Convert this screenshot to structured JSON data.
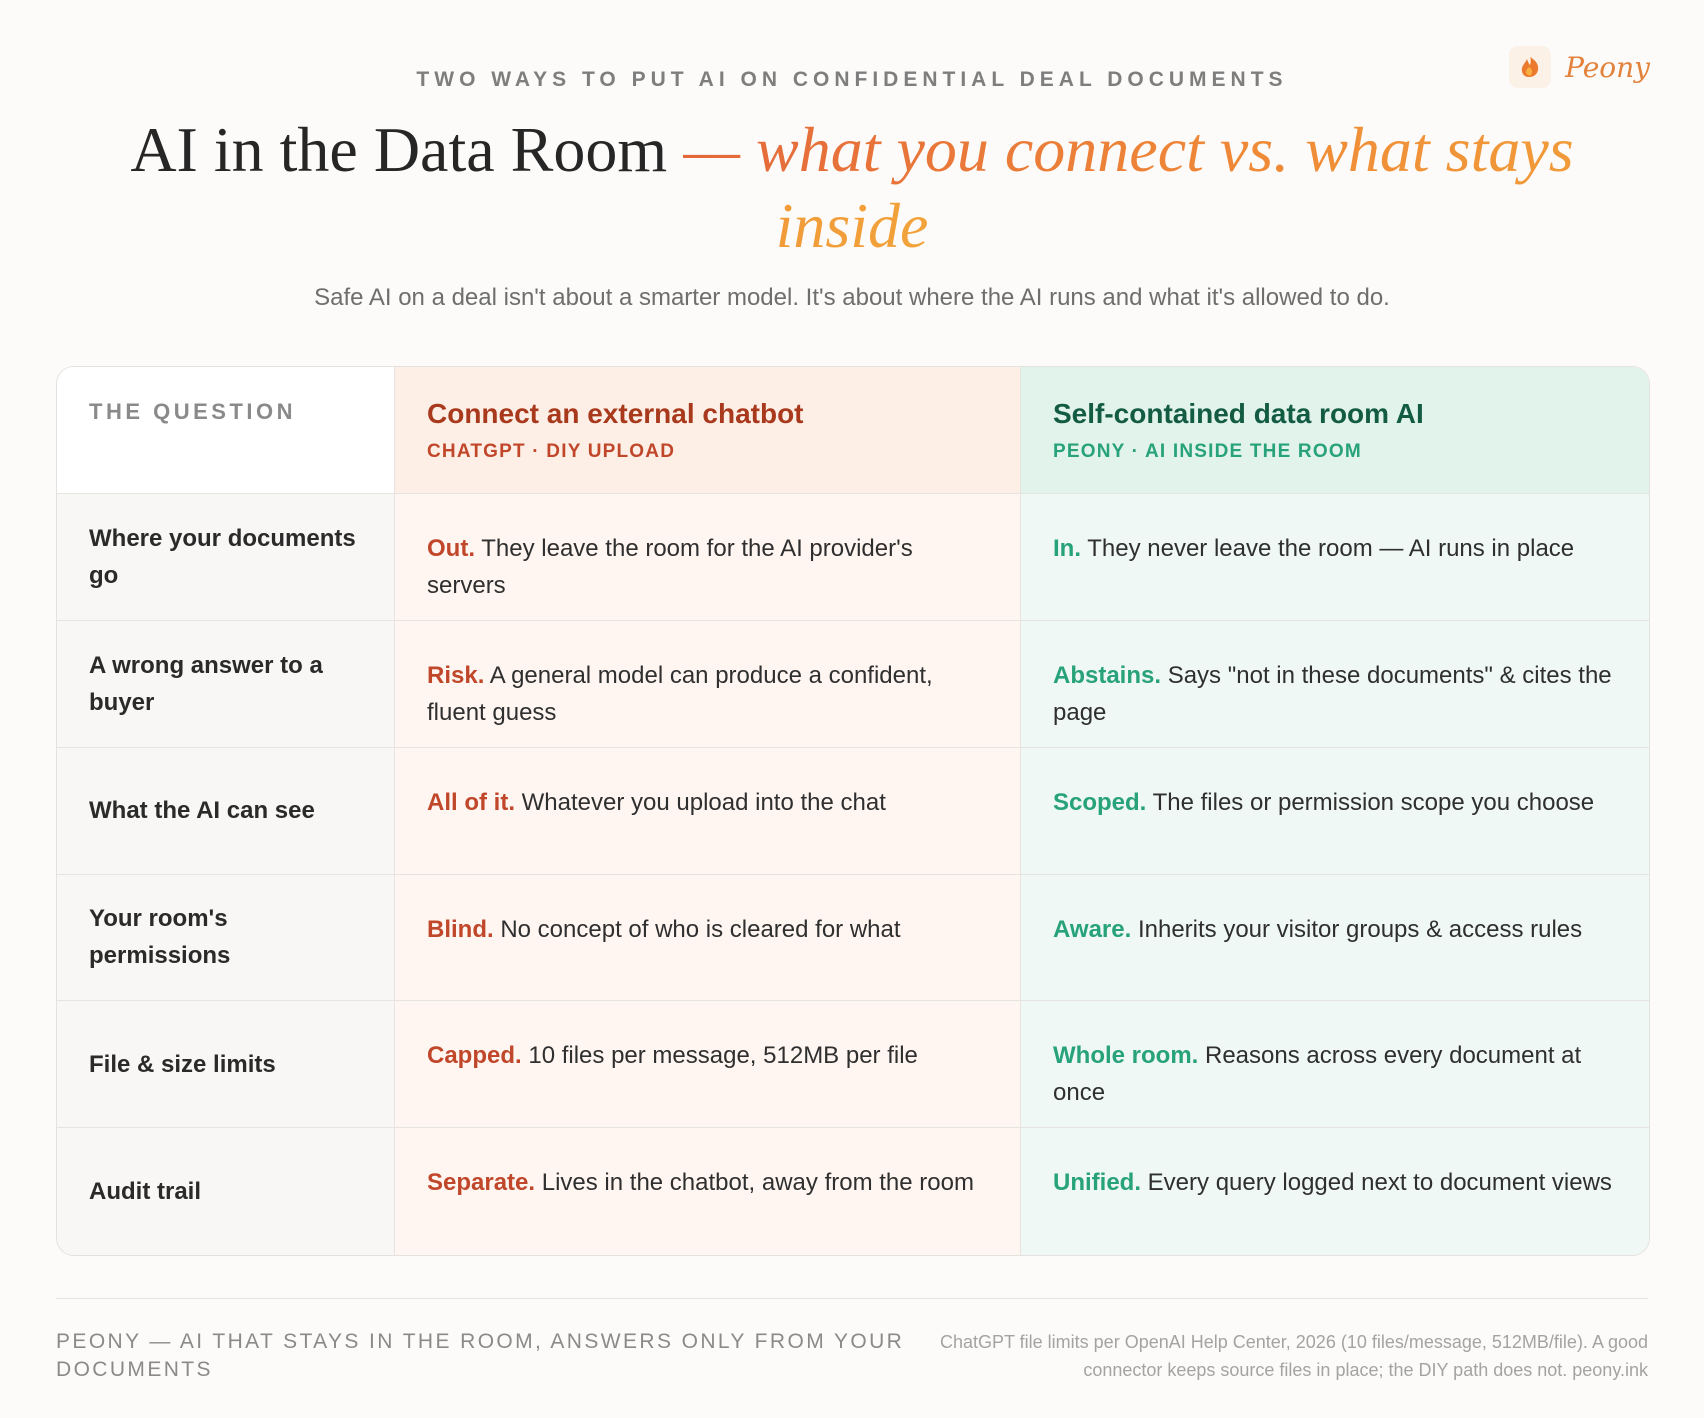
{
  "brand": {
    "name": "Peony",
    "icon": "peony-flame-icon"
  },
  "kicker": "TWO WAYS TO PUT AI ON CONFIDENTIAL DEAL DOCUMENTS",
  "headline": {
    "main": "AI in the Data Room",
    "accent": "— what you connect vs. what stays inside"
  },
  "subtitle": "Safe AI on a deal isn't about a smarter model. It's about where the AI runs and what it's allowed to do.",
  "colors": {
    "external_accent": "#c0472a",
    "external_bg": "#fff6f2",
    "internal_accent": "#27a27a",
    "internal_bg": "#eff8f4",
    "headline_accent": "#ef8a38"
  },
  "table": {
    "question_header": "THE QUESTION",
    "external": {
      "title": "Connect an external chatbot",
      "subtitle": "CHATGPT · DIY UPLOAD"
    },
    "internal": {
      "title": "Self-contained data room AI",
      "subtitle": "PEONY · AI INSIDE THE ROOM"
    },
    "rows": [
      {
        "question": "Where your documents go",
        "external": {
          "lead": "Out.",
          "text": "They leave the room for the AI provider's servers"
        },
        "internal": {
          "lead": "In.",
          "text": "They never leave the room — AI runs in place"
        }
      },
      {
        "question": "A wrong answer to a buyer",
        "external": {
          "lead": "Risk.",
          "text": "A general model can produce a confident, fluent guess"
        },
        "internal": {
          "lead": "Abstains.",
          "text": "Says \"not in these documents\" & cites the page"
        }
      },
      {
        "question": "What the AI can see",
        "external": {
          "lead": "All of it.",
          "text": "Whatever you upload into the chat"
        },
        "internal": {
          "lead": "Scoped.",
          "text": "The files or permission scope you choose"
        }
      },
      {
        "question": "Your room's permissions",
        "external": {
          "lead": "Blind.",
          "text": "No concept of who is cleared for what"
        },
        "internal": {
          "lead": "Aware.",
          "text": "Inherits your visitor groups & access rules"
        }
      },
      {
        "question": "File & size limits",
        "external": {
          "lead": "Capped.",
          "text": "10 files per message, 512MB per file"
        },
        "internal": {
          "lead": "Whole room.",
          "text": "Reasons across every document at once"
        }
      },
      {
        "question": "Audit trail",
        "external": {
          "lead": "Separate.",
          "text": "Lives in the chatbot, away from the room"
        },
        "internal": {
          "lead": "Unified.",
          "text": "Every query logged next to document views"
        }
      }
    ]
  },
  "footer": {
    "tagline": "PEONY — AI THAT STAYS IN THE ROOM, ANSWERS ONLY FROM YOUR DOCUMENTS",
    "note": "ChatGPT file limits per OpenAI Help Center, 2026 (10 files/message, 512MB/file). A good connector keeps source files in place; the DIY path does not. peony.ink"
  }
}
